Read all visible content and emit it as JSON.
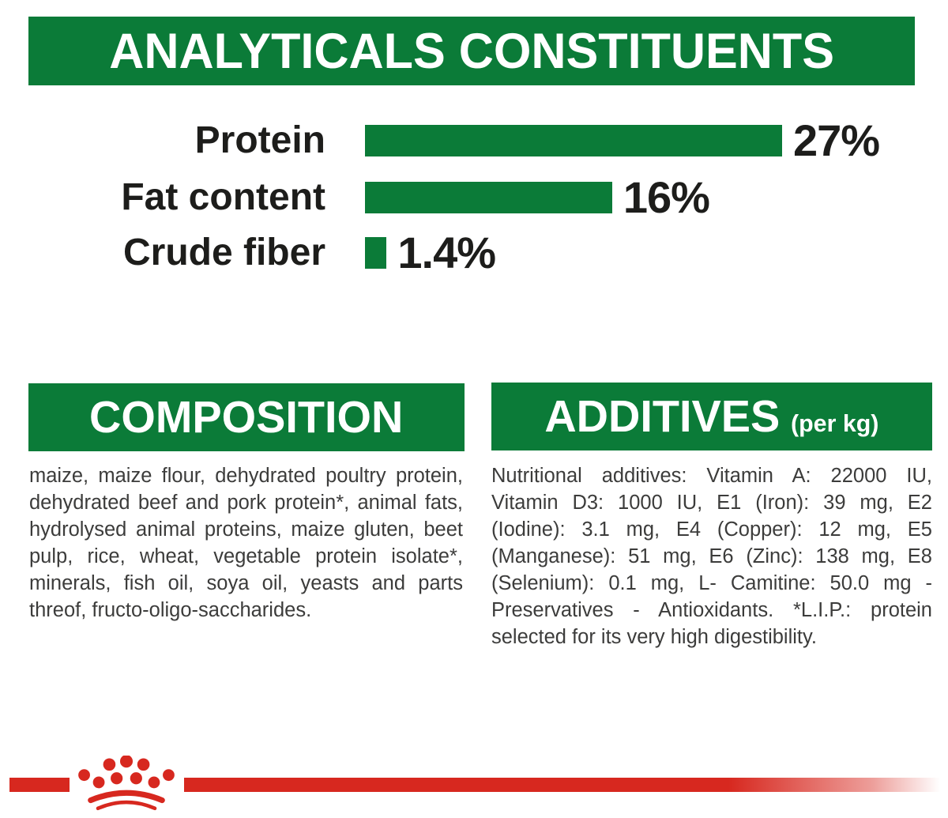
{
  "header": {
    "title": "ANALYTICALS CONSTITUENTS"
  },
  "chart_data": {
    "type": "bar",
    "orientation": "horizontal",
    "categories": [
      "Protein",
      "Fat content",
      "Crude fiber"
    ],
    "values": [
      27,
      16,
      1.4
    ],
    "value_labels": [
      "27%",
      "16%",
      "1.4%"
    ],
    "xlim": [
      0,
      27
    ],
    "grid": false,
    "legend": false,
    "bar_color": "#0b7b38",
    "label_color": "#1d1d1b"
  },
  "sections": {
    "composition": {
      "title": "COMPOSITION",
      "body": "maize, maize flour, dehydrated poultry protein, dehydrated beef and pork protein*, animal fats, hydrolysed animal proteins, maize gluten, beet pulp, rice, wheat, vegetable protein isolate*, minerals, fish oil, soya oil, yeasts and parts threof, fructo-oligo-saccharides."
    },
    "additives": {
      "title": "ADDITIVES",
      "title_suffix": "(per kg)",
      "body": "Nutritional additives: Vitamin A: 22000 IU, Vitamin D3: 1000 IU, E1 (Iron): 39 mg, E2 (Iodine): 3.1 mg, E4 (Copper): 12 mg, E5 (Manganese): 51 mg, E6 (Zinc): 138 mg, E8 (Selenium): 0.1 mg, L- Camitine: 50.0 mg - Preservatives - Antioxidants. *L.I.P.: protein selected for its very high digestibility."
    }
  },
  "footer": {
    "brand_logo": "royal-canin-crown"
  },
  "colors": {
    "green": "#0b7b38",
    "red": "#d7281f",
    "heading_text": "#ffffff",
    "chart_text": "#1d1d1b",
    "body_text": "#3c3c3b"
  }
}
